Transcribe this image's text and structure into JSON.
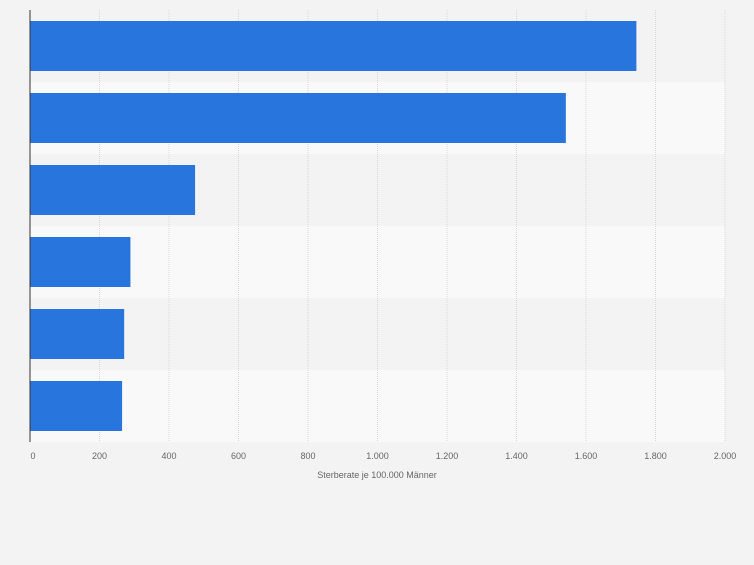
{
  "chart_data": {
    "type": "bar",
    "orientation": "horizontal",
    "categories": [
      "",
      "",
      "",
      "",
      "",
      ""
    ],
    "values": [
      1745,
      1542,
      475,
      289,
      271,
      265
    ],
    "title": "",
    "xlabel": "Sterberate je 100.000 Männer",
    "ylabel": "",
    "xlim": [
      0,
      2000
    ],
    "x_ticks": [
      0,
      200,
      400,
      600,
      800,
      1000,
      1200,
      1400,
      1600,
      1800,
      2000
    ],
    "x_tick_labels": [
      "0",
      "200",
      "400",
      "600",
      "800",
      "1.000",
      "1.200",
      "1.400",
      "1.600",
      "1.800",
      "2.000"
    ],
    "grid": true,
    "legend": "none",
    "colors": {
      "bar": "#2876dd",
      "band_dark": "#f3f3f3",
      "band_light": "#f9f9f9",
      "grid": "#d8d8d8",
      "axis": "#333333",
      "text": "#666666"
    }
  }
}
